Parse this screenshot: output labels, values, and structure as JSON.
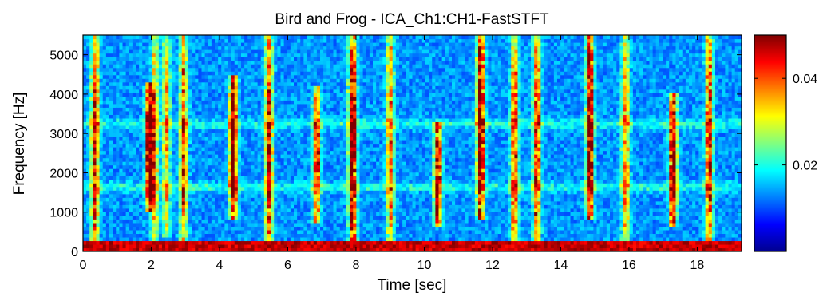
{
  "chart_data": {
    "type": "heatmap",
    "title": "Bird and Frog - ICA_Ch1:CH1-FastSTFT",
    "xlabel": "Time [sec]",
    "ylabel": "Frequency [Hz]",
    "xlim": [
      0,
      19.3
    ],
    "ylim": [
      0,
      5500
    ],
    "x_ticks": [
      0,
      2,
      4,
      6,
      8,
      10,
      12,
      14,
      16,
      18
    ],
    "y_ticks": [
      0,
      1000,
      2000,
      3000,
      4000,
      5000
    ],
    "colorbar": {
      "ticks": [
        0.02,
        0.04
      ],
      "range": [
        0,
        0.05
      ],
      "colormap": "jet",
      "stops": [
        "#00008f",
        "#0000ff",
        "#0080ff",
        "#00ffff",
        "#80ff80",
        "#ffff00",
        "#ff8000",
        "#ff0000",
        "#800000"
      ]
    },
    "background_level": "blue (~0.005-0.01)",
    "baseline_band": {
      "freq_range_hz": [
        0,
        250
      ],
      "level": "dark red (~0.05)"
    },
    "horizontal_bands_hz": [
      1650,
      3250
    ],
    "calls": [
      {
        "t": 0.35,
        "fmin": 0,
        "fmax": 5500,
        "intensity": 0.8
      },
      {
        "t": 1.95,
        "fmin": 1000,
        "fmax": 4300,
        "intensity": 1.0
      },
      {
        "t": 2.1,
        "fmin": 0,
        "fmax": 5500,
        "intensity": 0.5
      },
      {
        "t": 2.45,
        "fmin": 400,
        "fmax": 5500,
        "intensity": 0.5
      },
      {
        "t": 2.95,
        "fmin": 0,
        "fmax": 5500,
        "intensity": 0.7
      },
      {
        "t": 4.4,
        "fmin": 800,
        "fmax": 4500,
        "intensity": 1.0
      },
      {
        "t": 5.45,
        "fmin": 0,
        "fmax": 5500,
        "intensity": 0.75
      },
      {
        "t": 6.85,
        "fmin": 700,
        "fmax": 4200,
        "intensity": 0.8
      },
      {
        "t": 7.9,
        "fmin": 0,
        "fmax": 5500,
        "intensity": 1.0
      },
      {
        "t": 9.0,
        "fmin": 0,
        "fmax": 5500,
        "intensity": 0.6
      },
      {
        "t": 10.4,
        "fmin": 600,
        "fmax": 3300,
        "intensity": 0.9
      },
      {
        "t": 11.65,
        "fmin": 800,
        "fmax": 5500,
        "intensity": 1.0
      },
      {
        "t": 12.65,
        "fmin": 0,
        "fmax": 5500,
        "intensity": 0.7
      },
      {
        "t": 13.3,
        "fmin": 0,
        "fmax": 5500,
        "intensity": 0.75
      },
      {
        "t": 14.85,
        "fmin": 800,
        "fmax": 5500,
        "intensity": 1.0
      },
      {
        "t": 15.9,
        "fmin": 0,
        "fmax": 5500,
        "intensity": 0.6
      },
      {
        "t": 17.3,
        "fmin": 600,
        "fmax": 4000,
        "intensity": 1.0
      },
      {
        "t": 18.35,
        "fmin": 0,
        "fmax": 5500,
        "intensity": 0.75
      }
    ]
  }
}
